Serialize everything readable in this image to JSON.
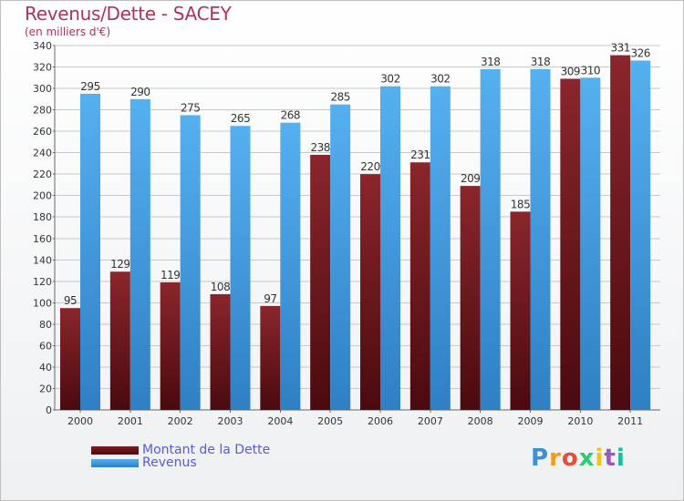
{
  "header": {
    "title": "Revenus/Dette - SACEY",
    "subtitle": "(en milliers d'€)"
  },
  "legend": {
    "debt_label": "Montant de la Dette",
    "revenue_label": "Revenus"
  },
  "logo": {
    "text": "Proxiti"
  },
  "colors": {
    "debt": "#7b1e24",
    "debt_dark": "#4a0a0f",
    "revenue": "#4aa3e8",
    "revenue_dark": "#2f7fc4",
    "title": "#b03060",
    "legend_text": "#5b5bd6"
  },
  "chart_data": {
    "type": "bar",
    "categories": [
      "2000",
      "2001",
      "2002",
      "2003",
      "2004",
      "2005",
      "2006",
      "2007",
      "2008",
      "2009",
      "2010",
      "2011"
    ],
    "series": [
      {
        "name": "Montant de la Dette",
        "values": [
          95,
          129,
          119,
          108,
          97,
          238,
          220,
          231,
          209,
          185,
          309,
          331
        ]
      },
      {
        "name": "Revenus",
        "values": [
          295,
          290,
          275,
          265,
          268,
          285,
          302,
          302,
          318,
          318,
          310,
          326
        ]
      }
    ],
    "title": "Revenus/Dette - SACEY",
    "ylabel": "(en milliers d'€)",
    "ylim": [
      0,
      340
    ],
    "yticks": [
      0,
      20,
      40,
      60,
      80,
      100,
      120,
      140,
      160,
      180,
      200,
      220,
      240,
      260,
      280,
      300,
      320,
      340
    ],
    "grid": true,
    "legend_position": "bottom-left"
  }
}
